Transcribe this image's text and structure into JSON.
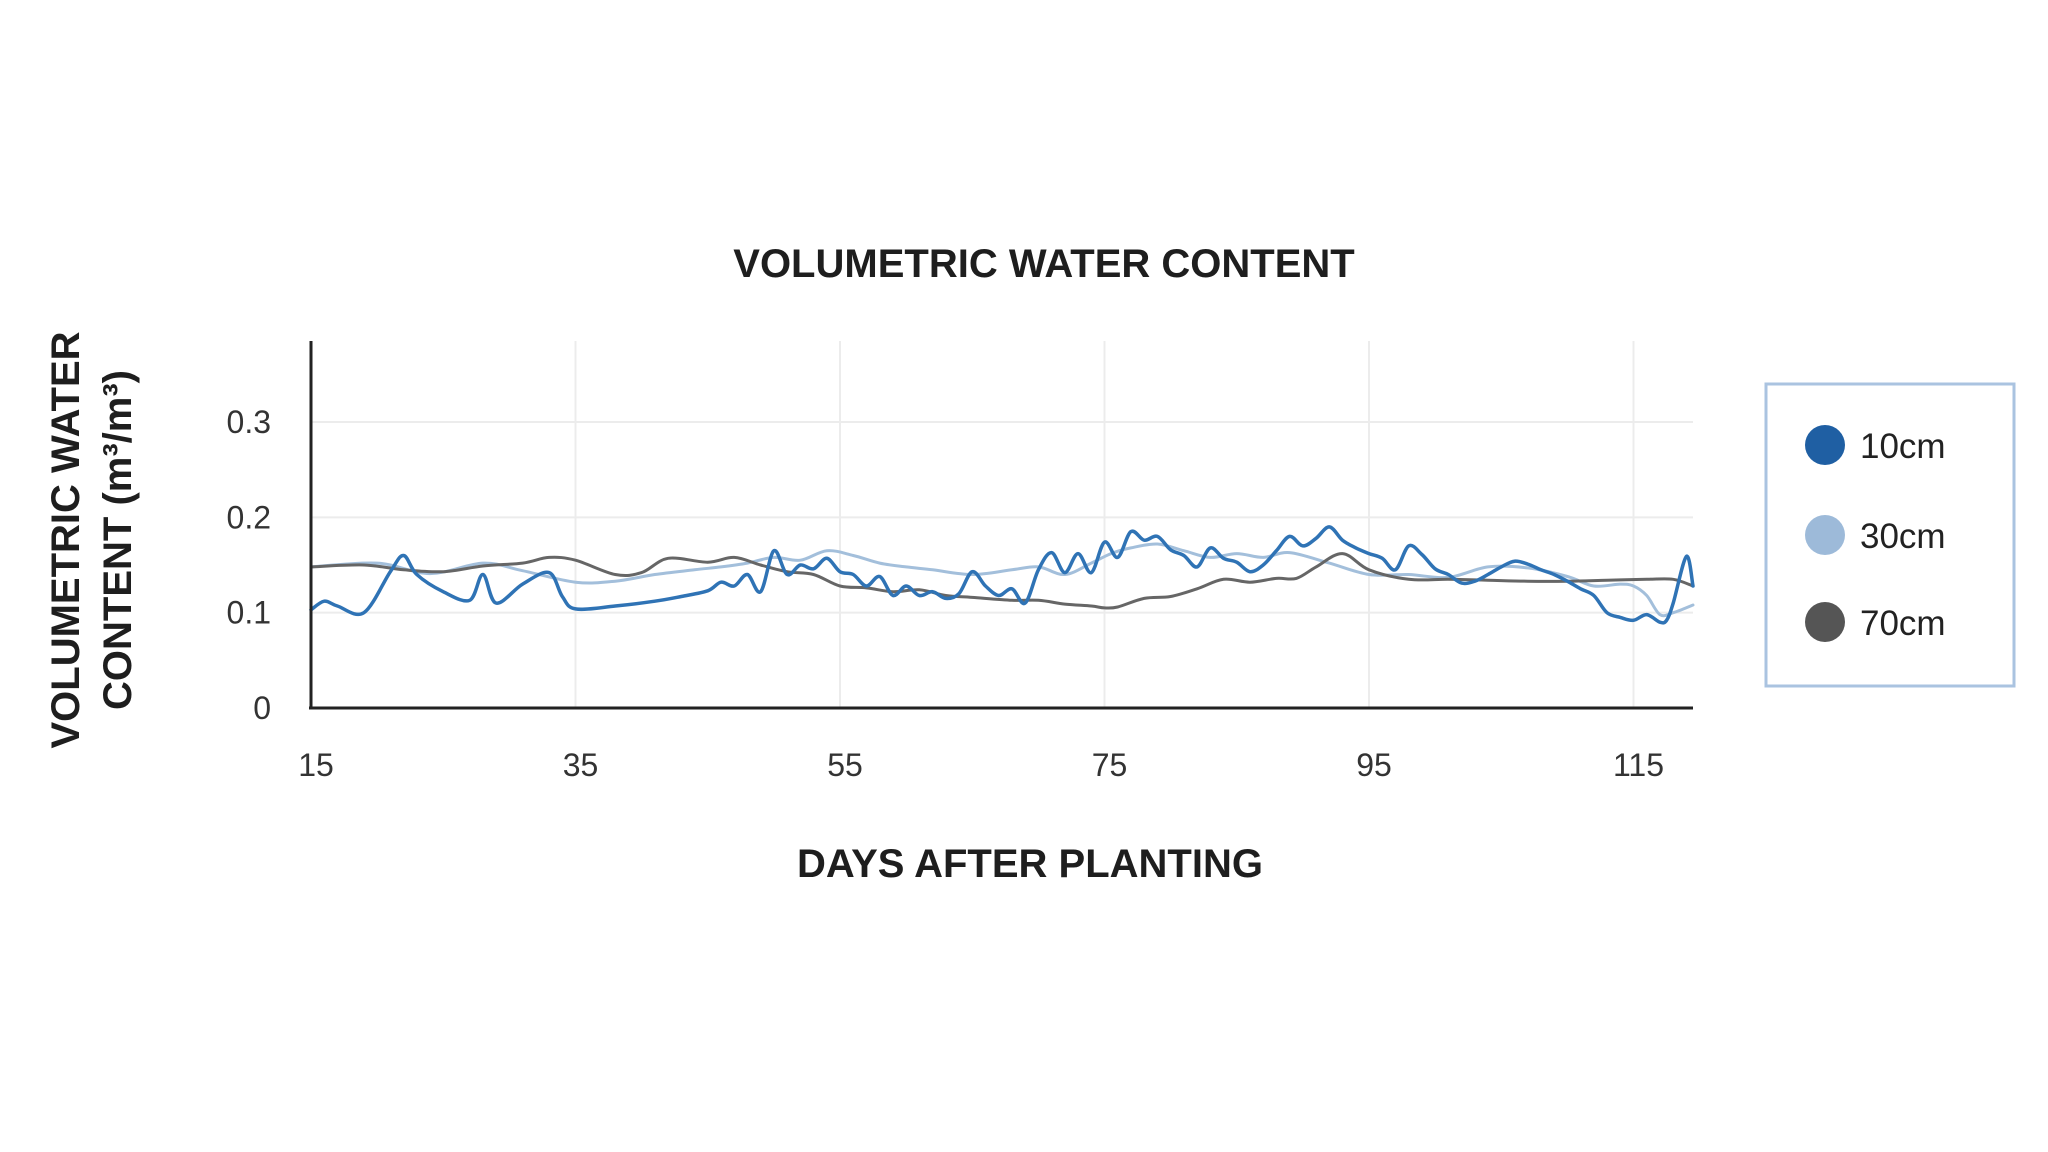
{
  "chart_data": {
    "type": "line",
    "title": "VOLUMETRIC WATER CONTENT",
    "xlabel": "DAYS AFTER PLANTING",
    "ylabel_line1": "VOLUMETRIC WATER",
    "ylabel_line2": "CONTENT (m³/m³)",
    "xlim": [
      15,
      119.5
    ],
    "ylim": [
      0,
      0.385
    ],
    "x_ticks": [
      15,
      35,
      55,
      75,
      95,
      115
    ],
    "y_ticks": [
      0,
      0.1,
      0.2,
      0.3
    ],
    "y_tick_labels": [
      "0",
      "0.1",
      "0.2",
      "0.3"
    ],
    "grid": true,
    "legend_position": "right",
    "series": [
      {
        "name": "30cm",
        "color": "#a3bfdb",
        "x": [
          15,
          20,
          24,
          28,
          31,
          35,
          38,
          41,
          44,
          46,
          48,
          50,
          52,
          54,
          56,
          58,
          60,
          62,
          65,
          68,
          70,
          72,
          74,
          75.5,
          77,
          79,
          81,
          83,
          85,
          87,
          89,
          92,
          95,
          98,
          101,
          104,
          107,
          110,
          112,
          114,
          115,
          116,
          117,
          118,
          119.5
        ],
        "y": [
          0.148,
          0.152,
          0.141,
          0.152,
          0.144,
          0.132,
          0.133,
          0.14,
          0.145,
          0.148,
          0.152,
          0.158,
          0.155,
          0.165,
          0.16,
          0.152,
          0.148,
          0.145,
          0.14,
          0.145,
          0.148,
          0.14,
          0.152,
          0.162,
          0.168,
          0.172,
          0.165,
          0.158,
          0.162,
          0.158,
          0.163,
          0.152,
          0.14,
          0.14,
          0.137,
          0.148,
          0.147,
          0.138,
          0.128,
          0.13,
          0.128,
          0.118,
          0.098,
          0.1,
          0.108
        ]
      },
      {
        "name": "70cm",
        "color": "#666666",
        "x": [
          15,
          19,
          22,
          25,
          28,
          31,
          33,
          35,
          38,
          40,
          42,
          45,
          47,
          49,
          51,
          53,
          55,
          57,
          59,
          61,
          63,
          65,
          68,
          70,
          72,
          74,
          75,
          76,
          78,
          80,
          82,
          84,
          86,
          88,
          89.5,
          91,
          93,
          95,
          98,
          101,
          104,
          107,
          110,
          113,
          116,
          118,
          119.5
        ],
        "y": [
          0.148,
          0.15,
          0.145,
          0.143,
          0.149,
          0.152,
          0.158,
          0.155,
          0.14,
          0.142,
          0.157,
          0.153,
          0.158,
          0.15,
          0.143,
          0.14,
          0.128,
          0.126,
          0.122,
          0.124,
          0.118,
          0.116,
          0.113,
          0.113,
          0.109,
          0.107,
          0.105,
          0.106,
          0.115,
          0.117,
          0.125,
          0.135,
          0.132,
          0.136,
          0.136,
          0.148,
          0.162,
          0.145,
          0.135,
          0.135,
          0.134,
          0.133,
          0.133,
          0.134,
          0.135,
          0.135,
          0.128
        ]
      },
      {
        "name": "10cm",
        "color": "#2f73b5",
        "x": [
          15,
          16,
          17,
          19,
          21,
          22,
          23,
          25,
          27,
          28,
          29,
          31,
          33,
          34,
          35,
          38,
          41,
          43,
          45,
          46,
          47,
          48,
          49,
          50,
          51,
          52,
          53,
          54,
          55,
          56,
          57,
          58,
          59,
          60,
          61,
          62,
          63,
          64,
          65,
          66,
          67,
          68,
          69,
          70,
          71,
          72,
          73,
          74,
          75,
          76,
          77,
          78,
          79,
          80,
          81,
          82,
          83,
          84,
          85,
          86,
          87,
          88,
          89,
          90,
          91,
          92,
          93,
          94,
          95,
          96,
          97,
          98,
          99,
          100,
          101,
          102,
          103,
          104,
          105,
          106,
          107,
          108,
          109,
          110,
          111,
          112,
          113,
          114,
          115,
          116,
          117,
          117.5,
          118,
          119,
          119.5
        ],
        "y": [
          0.103,
          0.112,
          0.107,
          0.1,
          0.143,
          0.16,
          0.14,
          0.122,
          0.113,
          0.14,
          0.11,
          0.13,
          0.142,
          0.117,
          0.104,
          0.107,
          0.112,
          0.117,
          0.123,
          0.132,
          0.128,
          0.14,
          0.122,
          0.165,
          0.14,
          0.15,
          0.146,
          0.157,
          0.143,
          0.14,
          0.128,
          0.138,
          0.118,
          0.128,
          0.118,
          0.122,
          0.115,
          0.12,
          0.143,
          0.128,
          0.118,
          0.125,
          0.11,
          0.145,
          0.163,
          0.142,
          0.162,
          0.142,
          0.174,
          0.158,
          0.185,
          0.176,
          0.18,
          0.166,
          0.16,
          0.148,
          0.168,
          0.157,
          0.153,
          0.143,
          0.15,
          0.165,
          0.18,
          0.17,
          0.178,
          0.19,
          0.176,
          0.168,
          0.162,
          0.157,
          0.145,
          0.17,
          0.161,
          0.146,
          0.14,
          0.131,
          0.133,
          0.14,
          0.148,
          0.154,
          0.151,
          0.145,
          0.14,
          0.133,
          0.125,
          0.118,
          0.1,
          0.095,
          0.092,
          0.098,
          0.09,
          0.092,
          0.11,
          0.159,
          0.128
        ]
      }
    ],
    "legend": [
      {
        "name": "10cm",
        "color": "#1f5fa3"
      },
      {
        "name": "30cm",
        "color": "#9dbad9"
      },
      {
        "name": "70cm",
        "color": "#555555"
      }
    ]
  },
  "colors": {
    "axis": "#222222",
    "grid": "#ececec",
    "legend_border": "#aac3e0"
  }
}
